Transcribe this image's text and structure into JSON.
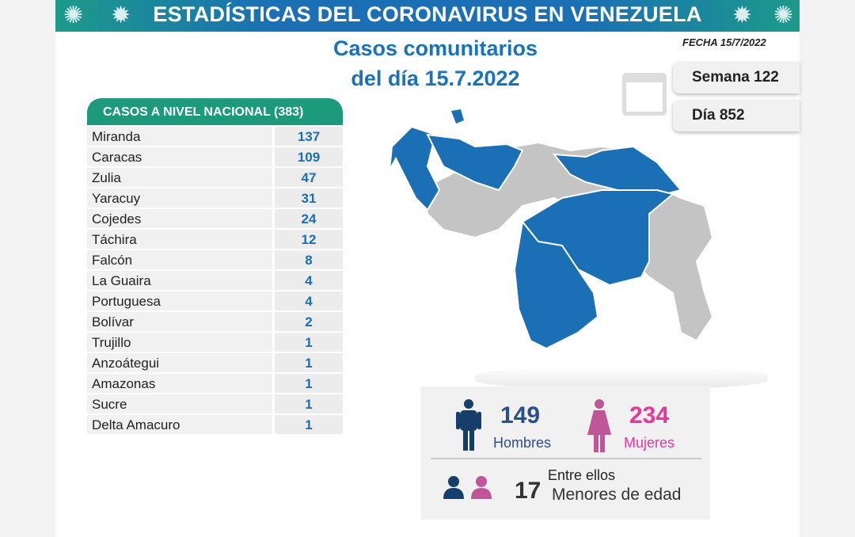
{
  "banner": {
    "title": "ESTADÍSTICAS DEL CORONAVIRUS EN VENEZUELA"
  },
  "header": {
    "title_line1": "Casos comunitarios",
    "title_line2": "del día 15.7.2022",
    "fecha": "FECHA 15/7/2022",
    "semana": "Semana 122",
    "dia": "Día 852"
  },
  "table": {
    "header": "CASOS A NIVEL NACIONAL  (383)",
    "rows": [
      {
        "state": "Miranda",
        "cases": "137"
      },
      {
        "state": "Caracas",
        "cases": "109"
      },
      {
        "state": "Zulia",
        "cases": "47"
      },
      {
        "state": "Yaracuy",
        "cases": "31"
      },
      {
        "state": "Cojedes",
        "cases": "24"
      },
      {
        "state": "Táchira",
        "cases": "12"
      },
      {
        "state": "Falcón",
        "cases": "8"
      },
      {
        "state": "La Guaira",
        "cases": "4"
      },
      {
        "state": "Portuguesa",
        "cases": "4"
      },
      {
        "state": "Bolívar",
        "cases": "2"
      },
      {
        "state": "Trujillo",
        "cases": "1"
      },
      {
        "state": "Anzoátegui",
        "cases": "1"
      },
      {
        "state": "Amazonas",
        "cases": "1"
      },
      {
        "state": "Sucre",
        "cases": "1"
      },
      {
        "state": "Delta Amacuro",
        "cases": "1"
      }
    ]
  },
  "gender": {
    "men_count": "149",
    "men_label": "Hombres",
    "women_count": "234",
    "women_label": "Mujeres",
    "minors_prefix": "Entre ellos",
    "minors_count": "17",
    "minors_label": "Menores de edad"
  },
  "colors": {
    "banner": "#1a6fb5",
    "table_header": "#1b9a7c",
    "affected": "#1a6fb5",
    "unaffected": "#c4c4c4",
    "men": "#153e6b",
    "women": "#c05598",
    "women_text": "#e8379a"
  }
}
